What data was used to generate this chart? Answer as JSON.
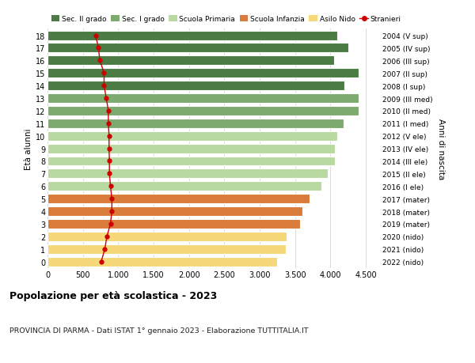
{
  "ages": [
    18,
    17,
    16,
    15,
    14,
    13,
    12,
    11,
    10,
    9,
    8,
    7,
    6,
    5,
    4,
    3,
    2,
    1,
    0
  ],
  "years": [
    "2004 (V sup)",
    "2005 (IV sup)",
    "2006 (III sup)",
    "2007 (II sup)",
    "2008 (I sup)",
    "2009 (III med)",
    "2010 (II med)",
    "2011 (I med)",
    "2012 (V ele)",
    "2013 (IV ele)",
    "2014 (III ele)",
    "2015 (II ele)",
    "2016 (I ele)",
    "2017 (mater)",
    "2018 (mater)",
    "2019 (mater)",
    "2020 (nido)",
    "2021 (nido)",
    "2022 (nido)"
  ],
  "bar_values": [
    4100,
    4250,
    4050,
    4400,
    4200,
    4400,
    4400,
    4180,
    4100,
    4060,
    4060,
    3960,
    3870,
    3700,
    3600,
    3570,
    3380,
    3370,
    3240
  ],
  "stranieri": [
    680,
    720,
    740,
    800,
    800,
    830,
    860,
    860,
    870,
    870,
    875,
    875,
    890,
    910,
    910,
    890,
    840,
    810,
    760
  ],
  "bar_colors": [
    "#4a7c43",
    "#4a7c43",
    "#4a7c43",
    "#4a7c43",
    "#4a7c43",
    "#7daa6e",
    "#7daa6e",
    "#7daa6e",
    "#b8d9a0",
    "#b8d9a0",
    "#b8d9a0",
    "#b8d9a0",
    "#b8d9a0",
    "#d97b3a",
    "#d97b3a",
    "#d97b3a",
    "#f5d87a",
    "#f5d87a",
    "#f5d87a"
  ],
  "legend_labels": [
    "Sec. II grado",
    "Sec. I grado",
    "Scuola Primaria",
    "Scuola Infanzia",
    "Asilo Nido",
    "Stranieri"
  ],
  "legend_colors": [
    "#4a7c43",
    "#7daa6e",
    "#b8d9a0",
    "#d97b3a",
    "#f5d87a",
    "#cc0000"
  ],
  "xlim": [
    0,
    4700
  ],
  "xticks": [
    0,
    500,
    1000,
    1500,
    2000,
    2500,
    3000,
    3500,
    4000,
    4500
  ],
  "ylabel_left": "Età alunni",
  "ylabel_right": "Anni di nascita",
  "title": "Popolazione per età scolastica - 2023",
  "subtitle": "PROVINCIA DI PARMA - Dati ISTAT 1° gennaio 2023 - Elaborazione TUTTITALIA.IT",
  "bar_height": 0.75,
  "background_color": "#ffffff",
  "grid_color": "#cccccc",
  "stranieri_color": "#cc0000"
}
